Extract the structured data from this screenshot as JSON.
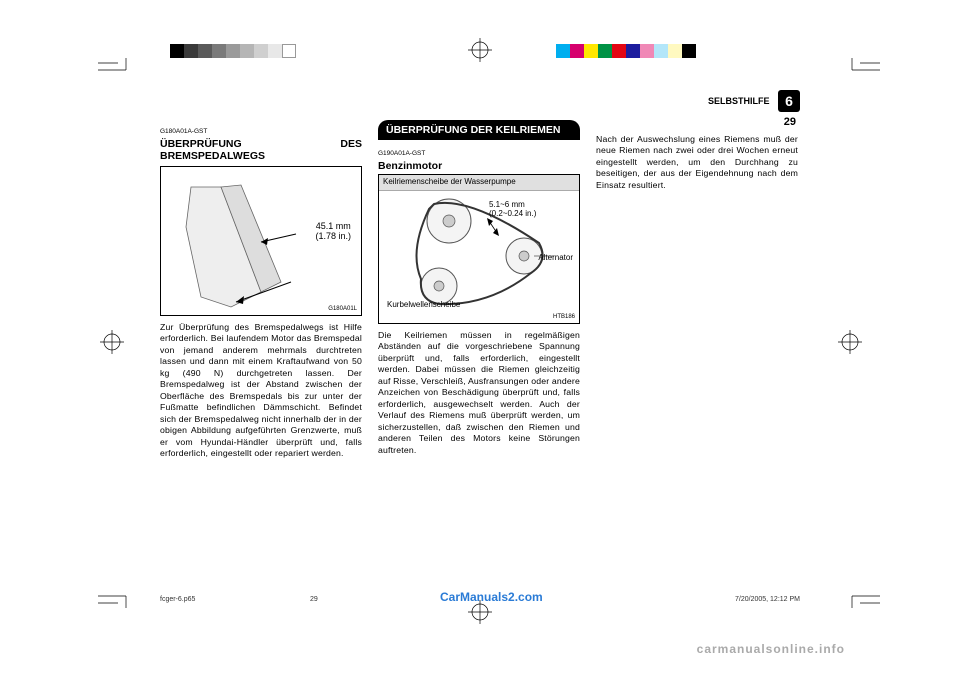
{
  "header": {
    "chapter_label": "SELBSTHILFE",
    "chapter_num": "6",
    "page_num": "29"
  },
  "col1": {
    "code": "G180A01A-GST",
    "title": "ÜBERPRÜFUNG DES BREMSPEDALWEGS",
    "figure": {
      "label_value": "45.1 mm",
      "label_unit": "(1.78 in.)",
      "code": "G180A01L"
    },
    "body": "Zur Überprüfung des Bremspedalwegs ist Hilfe erforderlich. Bei laufendem Motor das Bremspedal von jemand anderem mehrmals durchtreten lassen und dann mit einem Kraftaufwand von 50 kg (490 N) durchgetreten lassen. Der Bremspedalweg ist der Abstand zwischen der Oberfläche des Bremspedals bis zur unter der Fußmatte befindlichen Dämmschicht. Befindet sich der Bremspedalweg nicht innerhalb der in der obigen Abbildung aufgeführten Grenzwerte, muß er vom Hyundai-Händler überprüft und, falls erforderlich, eingestellt oder repariert werden."
  },
  "col2": {
    "title_inv": "ÜBERPRÜFUNG DER KEILRIEMEN",
    "code": "G190A01A-GST",
    "subtitle": "Benzinmotor",
    "figure": {
      "top_label": "Keilriemenscheibe der Wasserpumpe",
      "gap_value": "5.1~6 mm",
      "gap_unit": "(0.2~0.24 in.)",
      "alternator": "Alternator",
      "crankshaft": "Kurbelwellenscheibe",
      "code": "HTB186"
    },
    "body": "Die Keilriemen müssen in regelmäßigen Abständen auf die vorgeschriebene Spannung überprüft und, falls erforderlich, eingestellt werden. Dabei müssen die Riemen gleichzeitig auf Risse, Verschleiß, Ausfransungen oder andere Anzeichen von Beschädigung überprüft und, falls erforderlich, ausgewechselt werden. Auch der Verlauf des Riemens muß überprüft werden, um sicherzustellen, daß zwischen den Riemen und anderen Teilen des Motors keine Störungen auftreten."
  },
  "col3": {
    "body": "Nach der Auswechslung eines Riemens muß der neue Riemen nach zwei oder drei Wochen erneut eingestellt werden, um den Durchhang zu beseitigen, der aus der Eigendehnung nach dem Einsatz resultiert."
  },
  "footer": {
    "file": "fcger-6.p65",
    "page": "29",
    "date": "7/20/2005, 12:12 PM"
  },
  "watermark1": "CarManuals2.com",
  "watermark2": "carmanualsonline.info",
  "colorbar_left": [
    "#000000",
    "#3a3a3a",
    "#5a5a5a",
    "#7a7a7a",
    "#9a9a9a",
    "#b5b5b5",
    "#cfcfcf",
    "#e8e8e8",
    "#ffffff"
  ],
  "colorbar_right": [
    "#00aeef",
    "#d6006d",
    "#ffe700",
    "#009245",
    "#e30613",
    "#1d1d9e",
    "#f088b6",
    "#b3e6f9",
    "#fff9c0",
    "#000000"
  ]
}
